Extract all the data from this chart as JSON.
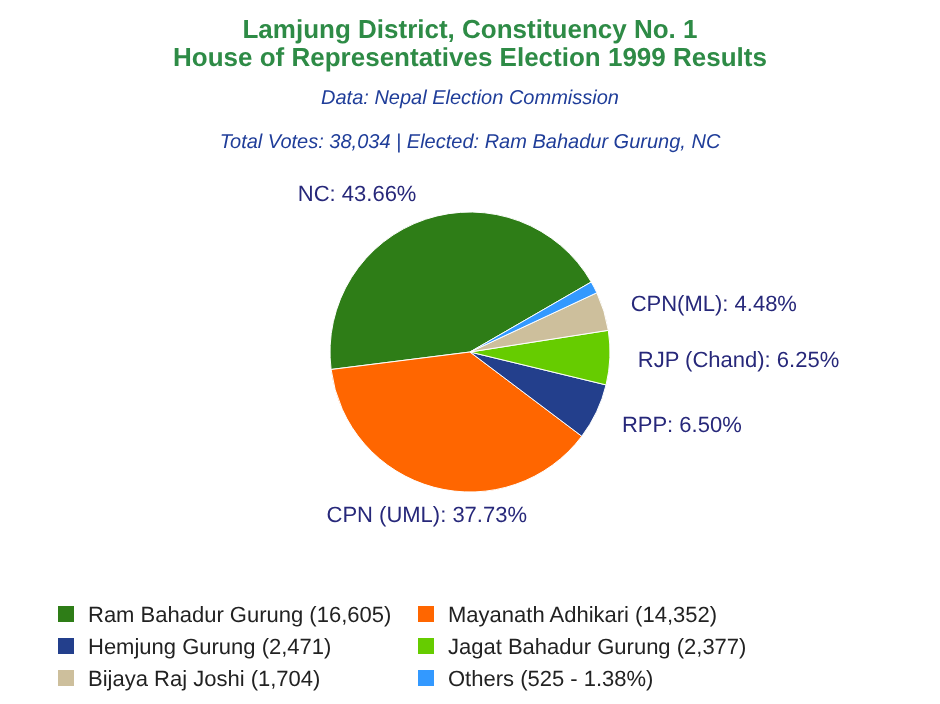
{
  "chart_data": {
    "type": "pie",
    "title": "Lamjung District, Constituency No. 1\nHouse of Representatives Election 1999 Results",
    "subtitle": "Total Votes: 38,034 | Elected: Ram Bahadur Gurung, NC",
    "annotations": [
      "Data: Nepal Election Commission"
    ],
    "categories": [
      "Ram Bahadur Gurung (16,605)",
      "Mayanath Adhikari (14,352)",
      "Hemjung Gurung (2,471)",
      "Jagat Bahadur Gurung (2,377)",
      "Bijaya Raj Joshi (1,704)",
      "Others (525 - 1.38%)"
    ],
    "values": [
      43.66,
      37.73,
      6.5,
      6.25,
      4.48,
      1.38
    ],
    "colors": [
      "#2e7d17",
      "#ff6600",
      "#233f8c",
      "#66cc00",
      "#cdbf9c",
      "#3399ff"
    ],
    "value_labels": [
      "NC: 43.66%",
      "CPN (UML): 37.73%",
      "RPP: 6.50%",
      "RJP (Chand): 6.25%",
      "CPN(ML): 4.48%",
      null
    ],
    "legend": "bottom"
  }
}
